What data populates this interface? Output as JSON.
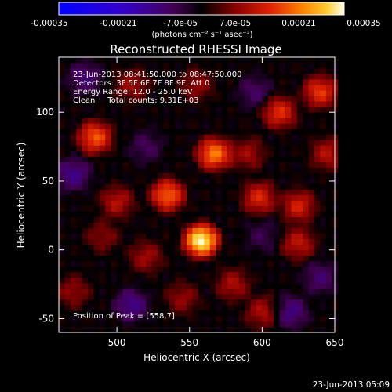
{
  "colorbar": {
    "ticks": [
      "-0.00035",
      "-0.00021",
      "-7.0e-05",
      "7.0e-05",
      "0.00021",
      "0.00035"
    ],
    "unit_label": "(photons cm⁻² s⁻¹ asec⁻²)",
    "range": [
      -0.00035,
      0.00035
    ]
  },
  "chart_data": {
    "type": "heatmap",
    "title": "Reconstructed RHESSI Image",
    "xlabel": "Heliocentric X (arcsec)",
    "ylabel": "Heliocentric Y (arcsec)",
    "xlim": [
      460,
      650
    ],
    "ylim": [
      -60,
      140
    ],
    "x_ticks": [
      "500",
      "550",
      "600",
      "650"
    ],
    "y_ticks": [
      "100",
      "50",
      "0",
      "-50"
    ],
    "x_tick_values": [
      500,
      550,
      600,
      650
    ],
    "y_tick_values": [
      100,
      50,
      0,
      -50
    ],
    "annotations": [
      "23-Jun-2013 08:41:50.000 to 08:47:50.000",
      "Detectors: 3F 5F 6F 7F 8F 9F, Att 0",
      "Energy Range: 12.0 - 25.0 keV",
      "Clean     Total counts: 9.31E+03"
    ],
    "peak_label": "Position of Peak = [558,7]",
    "peak": [
      558,
      7
    ],
    "sources": [
      {
        "x": 558,
        "y": 7,
        "amp": 0.00035
      },
      {
        "x": 567,
        "y": 70,
        "amp": 0.00024
      },
      {
        "x": 535,
        "y": 40,
        "amp": 0.00022
      },
      {
        "x": 485,
        "y": 82,
        "amp": 0.00021
      },
      {
        "x": 612,
        "y": 100,
        "amp": 0.00017
      },
      {
        "x": 598,
        "y": 38,
        "amp": 0.00016
      },
      {
        "x": 625,
        "y": 32,
        "amp": 0.00015
      },
      {
        "x": 640,
        "y": 115,
        "amp": 0.00018
      },
      {
        "x": 625,
        "y": 5,
        "amp": 0.00013
      },
      {
        "x": 500,
        "y": 35,
        "amp": 0.00012
      },
      {
        "x": 580,
        "y": -25,
        "amp": 0.00011
      },
      {
        "x": 520,
        "y": -5,
        "amp": 0.0001
      },
      {
        "x": 600,
        "y": -45,
        "amp": 0.00011
      },
      {
        "x": 545,
        "y": -35,
        "amp": 9e-05
      },
      {
        "x": 510,
        "y": 120,
        "amp": 0.0001
      },
      {
        "x": 555,
        "y": 120,
        "amp": 9e-05
      },
      {
        "x": 645,
        "y": 70,
        "amp": 0.00012
      },
      {
        "x": 470,
        "y": -30,
        "amp": 9e-05
      },
      {
        "x": 490,
        "y": 10,
        "amp": 8e-05
      },
      {
        "x": 590,
        "y": 70,
        "amp": 0.0001
      },
      {
        "x": 470,
        "y": 55,
        "amp": -0.00012
      },
      {
        "x": 478,
        "y": 125,
        "amp": -0.0001
      },
      {
        "x": 510,
        "y": -40,
        "amp": -0.00012
      },
      {
        "x": 620,
        "y": -45,
        "amp": -0.00011
      },
      {
        "x": 640,
        "y": -20,
        "amp": -9e-05
      },
      {
        "x": 595,
        "y": 115,
        "amp": -8e-05
      },
      {
        "x": 520,
        "y": 75,
        "amp": -7e-05
      },
      {
        "x": 600,
        "y": 10,
        "amp": -6e-05
      }
    ]
  },
  "timestamp": "23-Jun-2013 05:09"
}
